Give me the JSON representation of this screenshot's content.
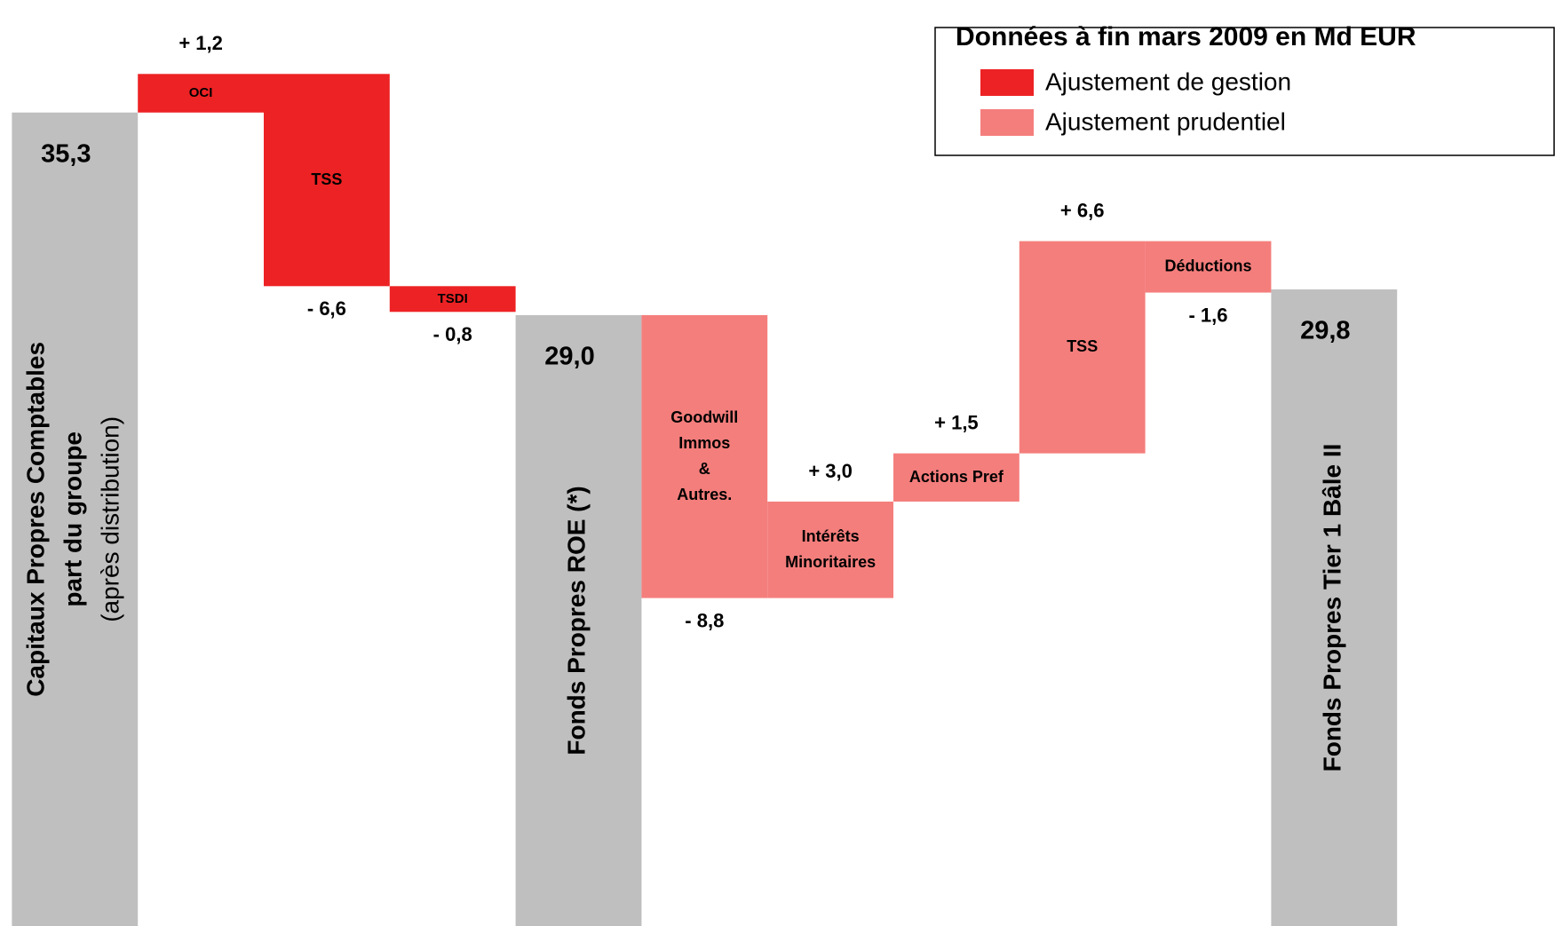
{
  "chart_data": {
    "type": "waterfall",
    "legend": {
      "title": "Données à fin mars 2009 en Md EUR",
      "items": [
        {
          "name": "Ajustement de gestion",
          "color": "#ed2224"
        },
        {
          "name": "Ajustement prudentiel",
          "color": "#f47e7c"
        }
      ]
    },
    "categories": [
      [
        "Capitaux Propres Comptables",
        "part du groupe",
        "(après distribution)"
      ],
      [
        "OCI"
      ],
      [
        "TSS"
      ],
      [
        "TSDI"
      ],
      [
        "Fonds Propres ROE (*)"
      ],
      [
        "Goodwill",
        "Immos",
        "&",
        "Autres."
      ],
      [
        "Intérêts",
        "Minoritaires"
      ],
      [
        "Actions Pref"
      ],
      [
        "TSS"
      ],
      [
        "Déductions"
      ],
      [
        "Fonds Propres Tier 1 Bâle II"
      ]
    ],
    "bar_types": [
      "total",
      "delta",
      "delta",
      "delta",
      "total",
      "delta",
      "delta",
      "delta",
      "delta",
      "delta",
      "total"
    ],
    "values": [
      35.3,
      1.2,
      -6.6,
      -0.8,
      29.0,
      -8.8,
      3.0,
      1.5,
      6.6,
      -1.6,
      29.8
    ],
    "value_labels": [
      "35,3",
      "+ 1,2",
      "- 6,6",
      "- 0,8",
      "29,0",
      "- 8,8",
      "+ 3,0",
      "+ 1,5",
      "+ 6,6",
      "- 1,6",
      "29,8"
    ],
    "colors": [
      "#bfbfbf",
      "#ed2224",
      "#ed2224",
      "#ed2224",
      "#bfbfbf",
      "#f47e7c",
      "#f47e7c",
      "#f47e7c",
      "#f47e7c",
      "#f47e7c",
      "#bfbfbf"
    ],
    "ylim": [
      10,
      38.8
    ]
  }
}
